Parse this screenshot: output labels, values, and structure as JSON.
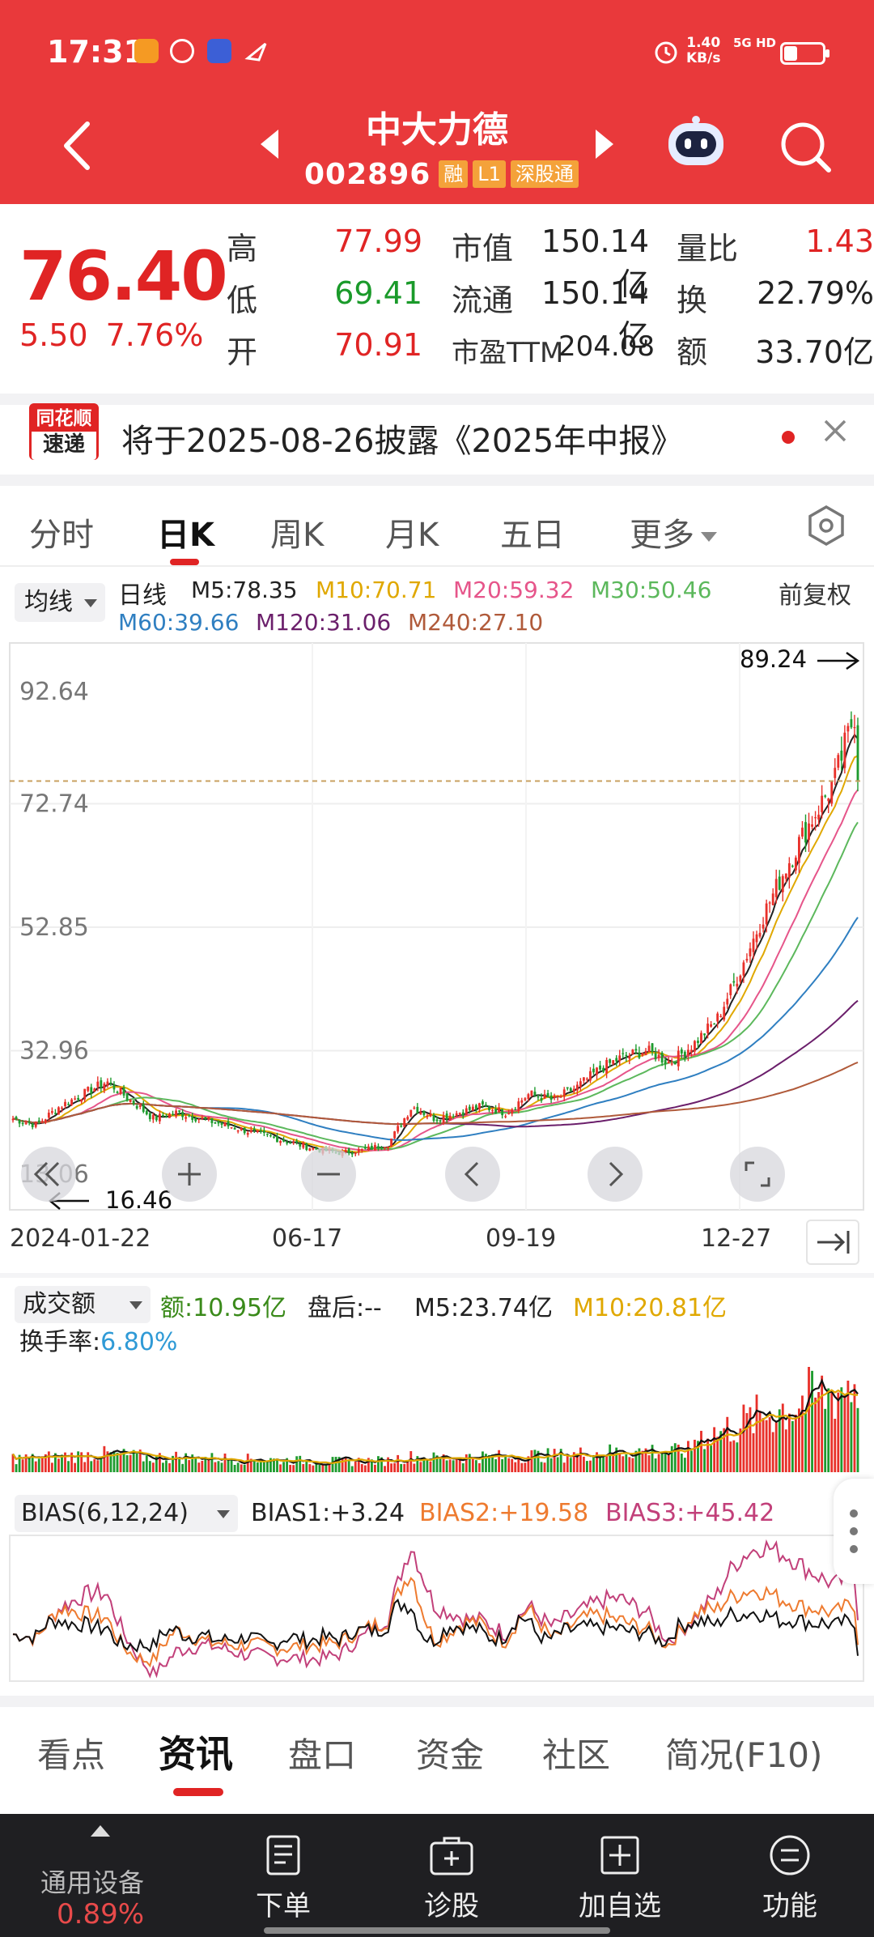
{
  "status_bar": {
    "time": "17:31",
    "net_speed": "1.40",
    "net_unit": "KB/s",
    "signal": "5G HD"
  },
  "header": {
    "title": "中大力德",
    "code": "002896",
    "tags": [
      "融",
      "L1",
      "深股通"
    ]
  },
  "quote": {
    "price": "76.40",
    "change": "5.50",
    "change_pct": "7.76%",
    "fields": [
      {
        "label": "高",
        "value": "77.99",
        "tone": "red"
      },
      {
        "label": "低",
        "value": "69.41",
        "tone": "green"
      },
      {
        "label": "开",
        "value": "70.91",
        "tone": "red"
      },
      {
        "label": "市值",
        "value": "150.14亿",
        "tone": "dark"
      },
      {
        "label": "流通",
        "value": "150.14亿",
        "tone": "dark"
      },
      {
        "label": "市盈TTM",
        "value": "204.08",
        "tone": "dark"
      },
      {
        "label": "量比",
        "value": "1.43",
        "tone": "red"
      },
      {
        "label": "换",
        "value": "22.79%",
        "tone": "dark"
      },
      {
        "label": "额",
        "value": "33.70亿",
        "tone": "dark"
      }
    ]
  },
  "banner": {
    "logo_top": "同花顺",
    "logo_bottom": "速递",
    "text": "将于2025-08-26披露《2025年中报》"
  },
  "period_tabs": [
    "分时",
    "日K",
    "周K",
    "月K",
    "五日",
    "更多"
  ],
  "ma_legend": {
    "selector": "均线",
    "line_label": "日线",
    "right_label": "前复权",
    "items": [
      {
        "text": "M5:78.35",
        "color": "#222222"
      },
      {
        "text": "M10:70.71",
        "color": "#e0a800"
      },
      {
        "text": "M20:59.32",
        "color": "#e6558a"
      },
      {
        "text": "M30:50.46",
        "color": "#5cb85c"
      },
      {
        "text": "M60:39.66",
        "color": "#2f7fc1"
      },
      {
        "text": "M120:31.06",
        "color": "#6b1f6b"
      },
      {
        "text": "M240:27.10",
        "color": "#b05a3a"
      }
    ]
  },
  "chart_data": {
    "type": "line",
    "title": "",
    "series_note": "daily candlestick with moving averages",
    "y_ticks": [
      "92.64",
      "72.74",
      "52.85",
      "32.96",
      "13.06"
    ],
    "ylim": [
      13.06,
      92.64
    ],
    "x_ticks": [
      "2024-01-22",
      "06-17",
      "09-19",
      "12-27"
    ],
    "high_marker": "89.24",
    "low_marker": "16.46",
    "reference_price": 76.4,
    "close_approx": [
      22,
      21,
      24,
      26,
      28,
      25,
      22,
      23,
      22,
      21,
      20,
      19,
      18,
      17,
      16.5,
      17,
      18,
      24,
      22,
      23,
      24,
      23,
      26,
      25,
      27,
      30,
      32,
      33,
      31,
      34,
      38,
      46,
      55,
      63,
      70,
      76.4,
      89
    ]
  },
  "volume": {
    "selector": "成交额",
    "amount_label": "额:10.95亿",
    "after_hours": "盘后:--",
    "m5": "M5:23.74亿",
    "m10": "M10:20.81亿",
    "turnover_label": "换手率:",
    "turnover_value": "6.80%"
  },
  "bias": {
    "selector": "BIAS(6,12,24)",
    "b1": "BIAS1:+3.24",
    "b2": "BIAS2:+19.58",
    "b3": "BIAS3:+45.42"
  },
  "info_tabs": [
    "看点",
    "资讯",
    "盘口",
    "资金",
    "社区",
    "简况(F10)"
  ],
  "bottom_bar": {
    "sector": "通用设备",
    "sector_pct": "0.89%",
    "items": [
      "下单",
      "诊股",
      "加自选",
      "功能"
    ]
  }
}
